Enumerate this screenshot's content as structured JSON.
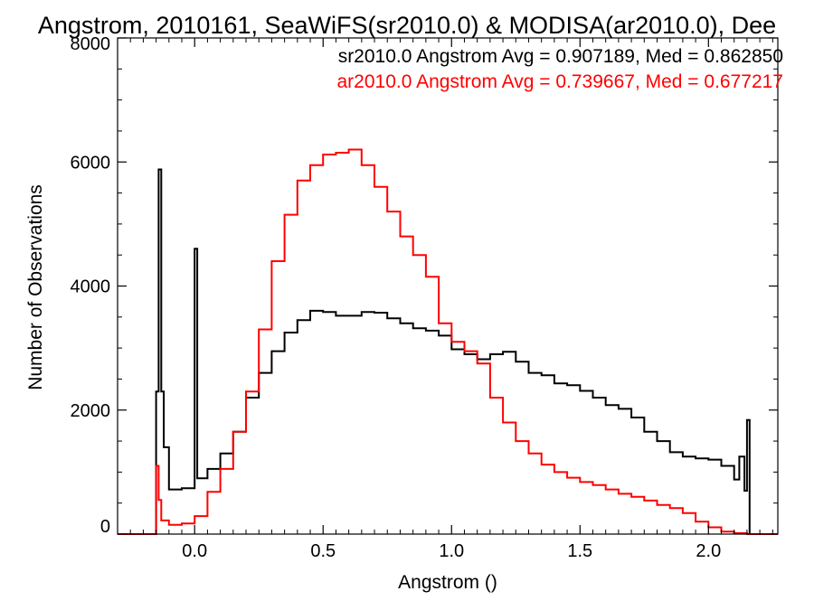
{
  "chart_data": {
    "type": "line",
    "title": "Angstrom, 2010161, SeaWiFS(sr2010.0) & MODISA(ar2010.0), Dee",
    "xlabel": "Angstrom ()",
    "ylabel": "Number of Observations",
    "xlim": [
      -0.3,
      2.27
    ],
    "ylim": [
      0,
      8000
    ],
    "grid": false,
    "legend_position": "top-right",
    "x_ticks": [
      "0.0",
      "0.5",
      "1.0",
      "1.5",
      "2.0"
    ],
    "x_tick_values": [
      0.0,
      0.5,
      1.0,
      1.5,
      2.0
    ],
    "y_ticks": [
      "0",
      "2000",
      "4000",
      "6000",
      "8000"
    ],
    "y_tick_values": [
      0,
      2000,
      4000,
      6000,
      8000
    ],
    "series": [
      {
        "legend_text": "sr2010.0 Angstrom Avg = 0.907189, Med = 0.862850",
        "color": "#000000",
        "points": [
          [
            -0.3,
            0
          ],
          [
            -0.16,
            0
          ],
          [
            -0.15,
            2300
          ],
          [
            -0.14,
            5880
          ],
          [
            -0.13,
            2300
          ],
          [
            -0.12,
            1400
          ],
          [
            -0.1,
            720
          ],
          [
            -0.05,
            740
          ],
          [
            0.0,
            900
          ],
          [
            0.0,
            4600
          ],
          [
            0.01,
            900
          ],
          [
            0.05,
            1050
          ],
          [
            0.1,
            1300
          ],
          [
            0.15,
            1650
          ],
          [
            0.2,
            2200
          ],
          [
            0.25,
            2600
          ],
          [
            0.3,
            2950
          ],
          [
            0.35,
            3250
          ],
          [
            0.4,
            3450
          ],
          [
            0.45,
            3600
          ],
          [
            0.5,
            3580
          ],
          [
            0.55,
            3520
          ],
          [
            0.6,
            3520
          ],
          [
            0.65,
            3580
          ],
          [
            0.7,
            3570
          ],
          [
            0.75,
            3480
          ],
          [
            0.8,
            3400
          ],
          [
            0.85,
            3320
          ],
          [
            0.9,
            3280
          ],
          [
            0.95,
            3200
          ],
          [
            1.0,
            2980
          ],
          [
            1.05,
            2900
          ],
          [
            1.1,
            2820
          ],
          [
            1.15,
            2900
          ],
          [
            1.2,
            2940
          ],
          [
            1.25,
            2780
          ],
          [
            1.3,
            2600
          ],
          [
            1.35,
            2560
          ],
          [
            1.4,
            2430
          ],
          [
            1.45,
            2400
          ],
          [
            1.5,
            2310
          ],
          [
            1.55,
            2200
          ],
          [
            1.6,
            2080
          ],
          [
            1.65,
            2020
          ],
          [
            1.7,
            1880
          ],
          [
            1.75,
            1650
          ],
          [
            1.8,
            1500
          ],
          [
            1.85,
            1320
          ],
          [
            1.9,
            1250
          ],
          [
            1.95,
            1220
          ],
          [
            2.0,
            1200
          ],
          [
            2.05,
            1100
          ],
          [
            2.1,
            880
          ],
          [
            2.12,
            1250
          ],
          [
            2.14,
            700
          ],
          [
            2.15,
            1840
          ],
          [
            2.16,
            0
          ],
          [
            2.27,
            0
          ]
        ]
      },
      {
        "legend_text": "ar2010.0 Angstrom Avg = 0.739667, Med = 0.677217",
        "color": "#ff0000",
        "points": [
          [
            -0.3,
            0
          ],
          [
            -0.16,
            0
          ],
          [
            -0.15,
            1100
          ],
          [
            -0.14,
            550
          ],
          [
            -0.13,
            220
          ],
          [
            -0.1,
            150
          ],
          [
            -0.05,
            170
          ],
          [
            0.0,
            290
          ],
          [
            0.05,
            680
          ],
          [
            0.1,
            1050
          ],
          [
            0.15,
            1650
          ],
          [
            0.2,
            2300
          ],
          [
            0.25,
            3300
          ],
          [
            0.3,
            4400
          ],
          [
            0.35,
            5150
          ],
          [
            0.4,
            5700
          ],
          [
            0.45,
            5950
          ],
          [
            0.5,
            6120
          ],
          [
            0.55,
            6150
          ],
          [
            0.6,
            6200
          ],
          [
            0.65,
            5950
          ],
          [
            0.7,
            5600
          ],
          [
            0.75,
            5200
          ],
          [
            0.8,
            4800
          ],
          [
            0.85,
            4500
          ],
          [
            0.9,
            4150
          ],
          [
            0.95,
            3400
          ],
          [
            1.0,
            3100
          ],
          [
            1.05,
            2950
          ],
          [
            1.1,
            2750
          ],
          [
            1.15,
            2200
          ],
          [
            1.2,
            1800
          ],
          [
            1.25,
            1500
          ],
          [
            1.3,
            1300
          ],
          [
            1.35,
            1120
          ],
          [
            1.4,
            1000
          ],
          [
            1.45,
            910
          ],
          [
            1.5,
            840
          ],
          [
            1.55,
            790
          ],
          [
            1.6,
            720
          ],
          [
            1.65,
            650
          ],
          [
            1.7,
            600
          ],
          [
            1.75,
            540
          ],
          [
            1.8,
            470
          ],
          [
            1.85,
            420
          ],
          [
            1.9,
            340
          ],
          [
            1.95,
            200
          ],
          [
            2.0,
            110
          ],
          [
            2.05,
            40
          ],
          [
            2.1,
            15
          ],
          [
            2.15,
            0
          ],
          [
            2.27,
            0
          ]
        ]
      }
    ]
  }
}
